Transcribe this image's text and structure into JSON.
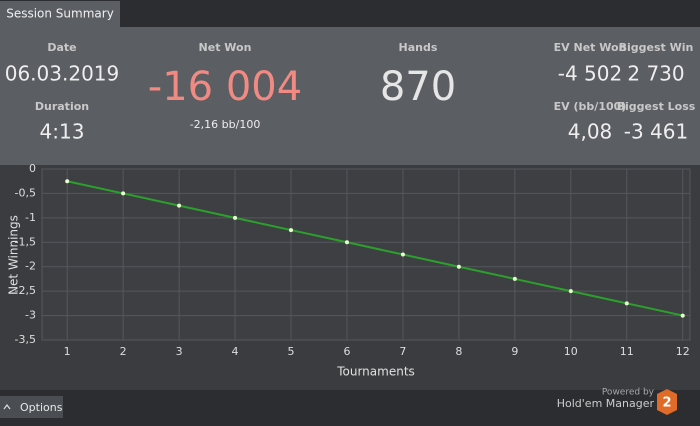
{
  "tab": {
    "title": "Session Summary"
  },
  "stats": {
    "date": {
      "label": "Date",
      "value": "06.03.2019"
    },
    "duration": {
      "label": "Duration",
      "value": "4:13"
    },
    "net_won": {
      "label": "Net Won",
      "value": "-16 004",
      "sub": "-2,16 bb/100"
    },
    "hands": {
      "label": "Hands",
      "value": "870"
    },
    "ev_net_won": {
      "label": "EV Net Won",
      "value": "-4 502"
    },
    "biggest_win": {
      "label": "Biggest Win",
      "value": "2 730"
    },
    "ev_bb": {
      "label": "EV (bb/100)",
      "value": "4,08"
    },
    "biggest_loss": {
      "label": "Biggest Loss",
      "value": "-3 461"
    }
  },
  "chart_data": {
    "type": "line",
    "x_label": "Tournaments",
    "y_label": "Net Winnings",
    "x": [
      1,
      2,
      3,
      4,
      5,
      6,
      7,
      8,
      9,
      10,
      11,
      12
    ],
    "values": [
      -0.25,
      -0.5,
      -0.75,
      -1,
      -1.25,
      -1.5,
      -1.75,
      -2,
      -2.25,
      -2.5,
      -2.75,
      -3
    ],
    "color": "#2ca02c",
    "point_color": "#e8ffd0",
    "xlim": [
      0.55,
      12.13
    ],
    "xticks": [
      1,
      2,
      3,
      4,
      5,
      6,
      7,
      8,
      9,
      10,
      11,
      12
    ],
    "ylim": [
      -3.5,
      0
    ],
    "yticks": [
      0,
      {
        "value": -0.5,
        "label": "-0,5"
      },
      -1,
      {
        "value": -1.5,
        "label": "-1,5"
      },
      -2,
      {
        "value": -2.5,
        "label": "-2,5"
      },
      -3,
      {
        "value": -3.5,
        "label": "-3,5"
      }
    ],
    "grid": true
  },
  "options": {
    "label": "Options"
  },
  "branding": {
    "powered": "Powered by",
    "product": "Hold'em Manager",
    "logo": "2"
  }
}
